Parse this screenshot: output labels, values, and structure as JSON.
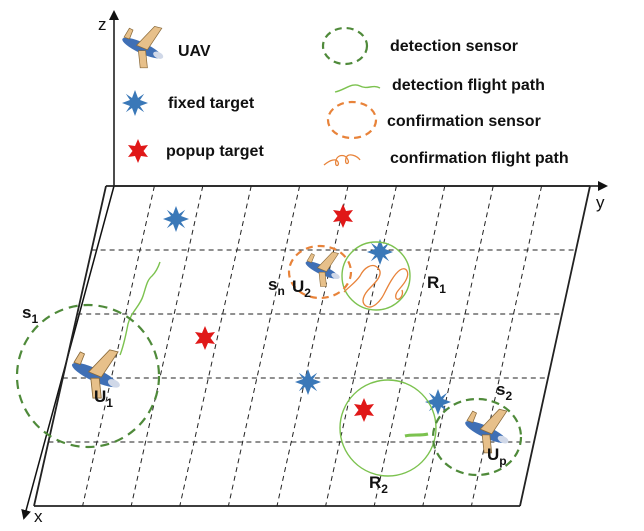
{
  "axes": {
    "z": "z",
    "y": "y",
    "x": "x"
  },
  "legend": {
    "uav": "UAV",
    "fixed_target": "fixed target",
    "popup_target": "popup target",
    "detection_sensor": "detection sensor",
    "detection_flight_path": "detection flight path",
    "confirmation_sensor": "confirmation sensor",
    "confirmation_flight_path": "confirmation flight path"
  },
  "labels": {
    "s1": {
      "base": "s",
      "sub": "1"
    },
    "s2": {
      "base": "s",
      "sub": "2"
    },
    "sn": {
      "base": "s",
      "sub": "n"
    },
    "u1": {
      "base": "U",
      "sub": "1"
    },
    "u2": {
      "base": "U",
      "sub": "2"
    },
    "up": {
      "base": "U",
      "sub": "p"
    },
    "r1": {
      "base": "R",
      "sub": "1"
    },
    "r2": {
      "base": "R",
      "sub": "2"
    }
  },
  "colors": {
    "detection": "#4f8a3a",
    "detection_path": "#7cc24f",
    "confirmation": "#e8833a",
    "fixed_target": "#3a78b8",
    "popup_target": "#e01818",
    "grid": "#222222"
  }
}
